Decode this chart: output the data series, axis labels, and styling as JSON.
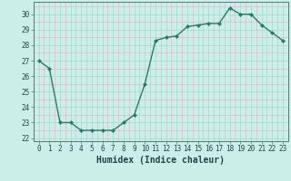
{
  "x": [
    0,
    1,
    2,
    3,
    4,
    5,
    6,
    7,
    8,
    9,
    10,
    11,
    12,
    13,
    14,
    15,
    16,
    17,
    18,
    19,
    20,
    21,
    22,
    23
  ],
  "y": [
    27.0,
    26.5,
    23.0,
    23.0,
    22.5,
    22.5,
    22.5,
    22.5,
    23.0,
    23.5,
    25.5,
    28.3,
    28.5,
    28.6,
    29.2,
    29.3,
    29.4,
    29.4,
    30.4,
    30.0,
    30.0,
    29.3,
    28.8,
    28.3
  ],
  "line_color": "#2a7a6a",
  "marker": "D",
  "marker_size": 2.0,
  "bg_color": "#cceee8",
  "grid_major_color": "#aaddcc",
  "grid_minor_color": "#ddbbcc",
  "xlabel": "Humidex (Indice chaleur)",
  "ylim": [
    21.8,
    30.8
  ],
  "xlim": [
    -0.5,
    23.5
  ],
  "yticks": [
    22,
    23,
    24,
    25,
    26,
    27,
    28,
    29,
    30
  ],
  "xticks": [
    0,
    1,
    2,
    3,
    4,
    5,
    6,
    7,
    8,
    9,
    10,
    11,
    12,
    13,
    14,
    15,
    16,
    17,
    18,
    19,
    20,
    21,
    22,
    23
  ],
  "tick_fontsize": 5.5,
  "xlabel_fontsize": 7,
  "linewidth": 1.0,
  "spine_color": "#557777",
  "tick_color": "#335555",
  "label_color": "#224444"
}
